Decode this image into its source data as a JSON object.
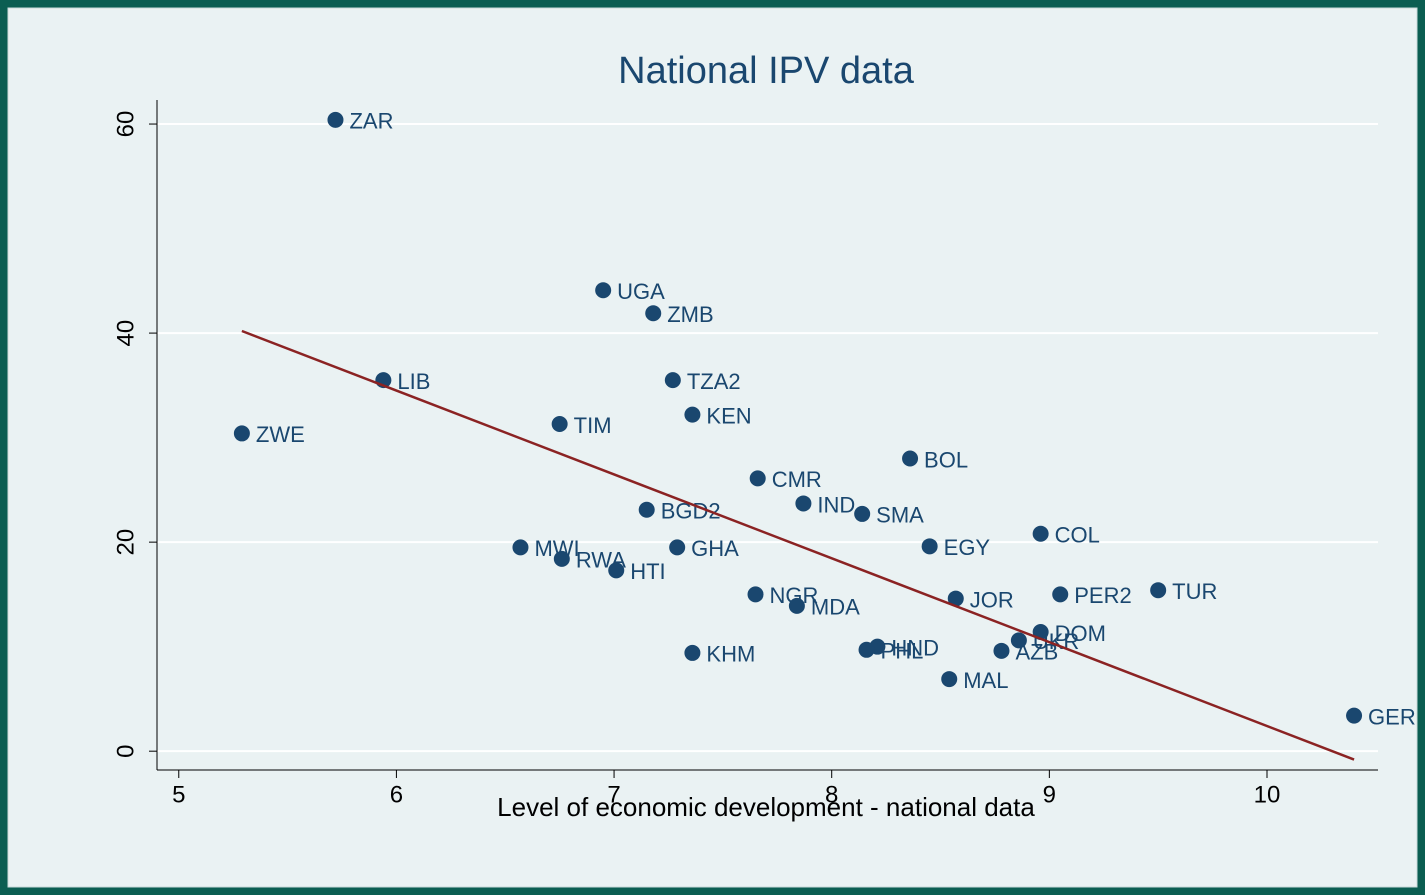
{
  "chart_data": {
    "type": "scatter",
    "title": "National IPV data",
    "x_label": "Level of economic development - national data",
    "xlim": [
      4.9,
      10.51
    ],
    "ylim": [
      -1.8,
      62.3
    ],
    "xticks": [
      5,
      6,
      7,
      8,
      9,
      10
    ],
    "yticks": [
      0,
      20,
      40,
      60
    ],
    "grid": true,
    "series": [
      {
        "color": "#1a476f",
        "labels": [
          "ZAR",
          "UGA",
          "ZMB",
          "LIB",
          "TZA2",
          "KEN",
          "TIM",
          "ZWE",
          "BOL",
          "CMR",
          "IND",
          "BGD2",
          "SMA",
          "COL",
          "MWI",
          "GHA",
          "EGY",
          "RWA",
          "HTI",
          "TUR",
          "NGR",
          "PER2",
          "JOR",
          "MDA",
          "DOM",
          "UKR",
          "HND",
          "PHL",
          "KHM",
          "AZB",
          "MAL",
          "GER"
        ],
        "x": [
          5.72,
          6.95,
          7.18,
          5.94,
          7.27,
          7.36,
          6.75,
          5.29,
          8.36,
          7.66,
          7.87,
          7.15,
          8.14,
          8.96,
          6.57,
          7.29,
          8.45,
          6.76,
          7.01,
          9.5,
          7.65,
          9.05,
          8.57,
          7.84,
          8.96,
          8.86,
          8.21,
          8.16,
          7.36,
          8.78,
          8.54,
          10.4
        ],
        "values": [
          60.4,
          44.1,
          41.9,
          35.5,
          35.5,
          32.2,
          31.3,
          30.4,
          28.0,
          26.1,
          23.7,
          23.1,
          22.7,
          20.8,
          19.5,
          19.5,
          19.6,
          18.4,
          17.3,
          15.4,
          15.0,
          15.0,
          14.6,
          13.9,
          11.4,
          10.6,
          10.0,
          9.7,
          9.4,
          9.6,
          6.9,
          3.4
        ]
      }
    ],
    "fit_line": {
      "color": "#8b2323",
      "x": [
        5.29,
        10.4
      ],
      "values": [
        40.2,
        -0.8
      ]
    }
  }
}
